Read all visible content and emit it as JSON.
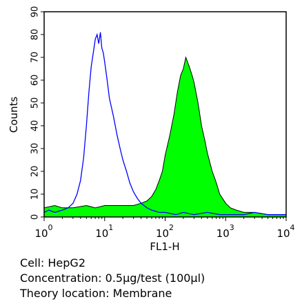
{
  "chart_data": {
    "type": "area",
    "xlabel": "FL1-H",
    "ylabel": "Counts",
    "x_scale": "log",
    "xlim": [
      1,
      10000
    ],
    "ylim": [
      0,
      90
    ],
    "y_ticks": [
      0,
      10,
      20,
      30,
      40,
      50,
      60,
      70,
      80,
      90
    ],
    "x_ticks": [
      {
        "value": 1,
        "base": "10",
        "exp": "0"
      },
      {
        "value": 10,
        "base": "10",
        "exp": "1"
      },
      {
        "value": 100,
        "base": "10",
        "exp": "2"
      },
      {
        "value": 1000,
        "base": "10",
        "exp": "3"
      },
      {
        "value": 10000,
        "base": "10",
        "exp": "4"
      }
    ],
    "series": [
      {
        "style": "outline",
        "color": "#0000ff",
        "x": [
          1,
          1.2,
          1.5,
          2,
          2.5,
          3,
          3.5,
          4,
          4.5,
          5,
          5.5,
          6,
          6.5,
          7,
          7.5,
          8,
          8.5,
          9,
          9.5,
          10,
          11,
          12,
          13,
          14,
          16,
          18,
          20,
          23,
          26,
          30,
          35,
          40,
          50,
          60,
          80,
          100,
          150,
          200,
          300,
          500,
          800,
          1000,
          2000,
          3000,
          5000,
          10000
        ],
        "y": [
          2,
          3,
          2,
          3,
          4,
          6,
          10,
          16,
          26,
          40,
          55,
          66,
          72,
          78,
          80,
          76,
          81,
          74,
          72,
          68,
          60,
          52,
          48,
          44,
          36,
          30,
          25,
          20,
          15,
          11,
          8,
          6,
          4,
          3,
          2,
          2,
          1,
          2,
          1,
          2,
          1,
          1,
          1,
          2,
          1,
          1
        ]
      },
      {
        "style": "filled",
        "color": "#00ff00",
        "x": [
          1,
          1.5,
          2,
          3,
          5,
          7,
          10,
          15,
          20,
          30,
          40,
          50,
          60,
          70,
          80,
          90,
          100,
          120,
          140,
          160,
          180,
          200,
          220,
          250,
          280,
          300,
          350,
          400,
          450,
          500,
          600,
          700,
          800,
          1000,
          1200,
          1500,
          2000,
          3000,
          5000,
          10000
        ],
        "y": [
          4,
          5,
          4,
          4,
          5,
          4,
          5,
          5,
          5,
          5,
          6,
          7,
          9,
          12,
          16,
          20,
          27,
          36,
          45,
          55,
          62,
          65,
          70,
          66,
          62,
          59,
          50,
          40,
          34,
          28,
          20,
          15,
          10,
          6,
          4,
          3,
          2,
          2,
          1,
          1
        ]
      }
    ]
  },
  "captions": {
    "cell": "Cell: HepG2",
    "concentration": "Concentration: 0.5μg/test (100μl)",
    "location": "Theory location: Membrane"
  }
}
